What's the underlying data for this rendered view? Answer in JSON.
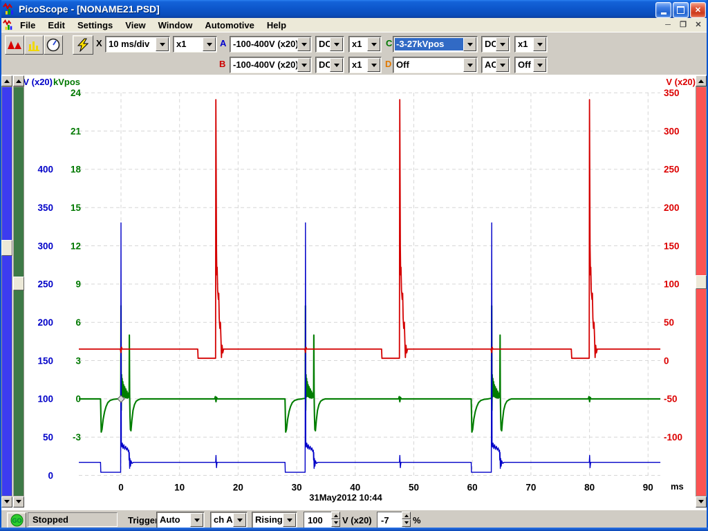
{
  "window": {
    "title": "PicoScope - [NONAME21.PSD]"
  },
  "menu": {
    "items": [
      "File",
      "Edit",
      "Settings",
      "View",
      "Window",
      "Automotive",
      "Help"
    ]
  },
  "toolbar": {
    "x_label": "X",
    "timebase": "10 ms/div",
    "x_multiplier": "x1",
    "channels": [
      {
        "label": "A",
        "color": "#0000cc",
        "range": "-100-400V (x20)",
        "coupling": "DC",
        "probe": "x1"
      },
      {
        "label": "B",
        "color": "#cc0000",
        "range": "-100-400V (x20)",
        "coupling": "DC",
        "probe": "x1"
      },
      {
        "label": "C",
        "color": "#007700",
        "range": "-3-27kVpos",
        "coupling": "DC",
        "probe": "x1"
      },
      {
        "label": "D",
        "color": "#e07800",
        "range": "Off",
        "coupling": "AC",
        "probe": "Off"
      }
    ]
  },
  "statusbar": {
    "go_label": "GO",
    "status": "Stopped",
    "trigger_label": "Trigger",
    "trigger_mode": "Auto",
    "trigger_source": "ch A",
    "trigger_edge": "Rising",
    "threshold_value": "100",
    "threshold_unit": "V (x20)",
    "delay_value": "-7",
    "delay_unit": "%"
  },
  "chart_data": {
    "type": "line",
    "x_axis": {
      "unit": "ms",
      "ticks": [
        "0",
        "10",
        "20",
        "30",
        "40",
        "50",
        "60",
        "70",
        "80",
        "90"
      ],
      "ms_per_div": 10,
      "range_ms": [
        -7.2,
        92.1
      ]
    },
    "y_axes": [
      {
        "id": "blue",
        "title": "V (x20)",
        "color": "#0000c8",
        "units_per_div": 50,
        "ticks": [
          "400",
          "350",
          "300",
          "250",
          "200",
          "150",
          "100",
          "50",
          "0"
        ],
        "first_row": 2,
        "side": "left"
      },
      {
        "id": "green",
        "title": "kVpos",
        "color": "#007800",
        "units_per_div": 3,
        "ticks": [
          "24",
          "21",
          "18",
          "15",
          "12",
          "9",
          "6",
          "3",
          "0",
          "-3"
        ],
        "first_row": 0,
        "side": "left"
      },
      {
        "id": "red",
        "title": "V (x20)",
        "color": "#dc0000",
        "units_per_div": 50,
        "ticks": [
          "350",
          "300",
          "250",
          "200",
          "150",
          "100",
          "50",
          "0",
          "-50",
          "-100"
        ],
        "first_row": 0,
        "side": "right"
      }
    ],
    "timestamp": "31May2012  10:44",
    "trigger_marker": {
      "t": 0,
      "v": 0,
      "axis": "green"
    },
    "templates": {
      "kv_event": [
        [
          -3.5,
          0
        ],
        [
          -3.46,
          -0.7
        ],
        [
          -3.38,
          -2.6
        ],
        [
          -3.25,
          -2.4
        ],
        [
          -3.05,
          -1.6
        ],
        [
          -2.8,
          -1.0
        ],
        [
          -2.55,
          -0.6
        ],
        [
          -2.25,
          -0.3
        ],
        [
          -1.85,
          -0.12
        ],
        [
          -1.3,
          -0.04
        ],
        [
          -0.6,
          0
        ],
        [
          -0.04,
          0.05
        ],
        [
          0,
          7.3
        ],
        [
          0.04,
          -0.9
        ],
        [
          0.09,
          1.9
        ],
        [
          0.14,
          0.15
        ],
        [
          0.19,
          1.6
        ],
        [
          0.25,
          0.35
        ],
        [
          0.31,
          1.35
        ],
        [
          0.38,
          0.2
        ],
        [
          0.45,
          1.1
        ],
        [
          0.53,
          0.15
        ],
        [
          0.62,
          0.95
        ],
        [
          0.72,
          0.1
        ],
        [
          0.82,
          0.78
        ],
        [
          0.92,
          0.08
        ],
        [
          1.02,
          0.6
        ],
        [
          1.12,
          0.06
        ],
        [
          1.22,
          0.45
        ],
        [
          1.32,
          0.12
        ],
        [
          1.39,
          0.3
        ],
        [
          1.43,
          5.0
        ],
        [
          1.47,
          0.4
        ],
        [
          1.53,
          -1.3
        ],
        [
          1.6,
          -2.4
        ],
        [
          1.7,
          -2.5
        ],
        [
          1.85,
          -1.7
        ],
        [
          2.05,
          -0.9
        ],
        [
          2.3,
          -0.45
        ],
        [
          2.6,
          -0.18
        ],
        [
          3.0,
          -0.06
        ],
        [
          3.4,
          0
        ]
      ],
      "kv_blip": [
        [
          -0.2,
          0
        ],
        [
          -0.08,
          0.18
        ],
        [
          0.02,
          -0.22
        ],
        [
          0.12,
          0.12
        ],
        [
          0.25,
          0
        ]
      ],
      "lv_event": [
        [
          -3.5,
          17
        ],
        [
          -3.45,
          4
        ],
        [
          -2.0,
          4
        ],
        [
          -0.06,
          4
        ],
        [
          0,
          330
        ],
        [
          0.06,
          44
        ],
        [
          0.14,
          37
        ],
        [
          0.24,
          42
        ],
        [
          0.36,
          35
        ],
        [
          0.5,
          40
        ],
        [
          0.64,
          34
        ],
        [
          0.8,
          38
        ],
        [
          0.96,
          33
        ],
        [
          1.1,
          36
        ],
        [
          1.24,
          31
        ],
        [
          1.34,
          33
        ],
        [
          1.38,
          20
        ],
        [
          1.42,
          30
        ],
        [
          1.47,
          9
        ],
        [
          1.54,
          22
        ],
        [
          1.62,
          12
        ],
        [
          1.72,
          19
        ],
        [
          1.88,
          15.5
        ],
        [
          2.1,
          17
        ]
      ],
      "lv_blip": [
        [
          -0.15,
          17
        ],
        [
          -0.04,
          17
        ],
        [
          0.02,
          26
        ],
        [
          0.1,
          10
        ],
        [
          0.2,
          17
        ]
      ],
      "hv_event": [
        [
          -3.1,
          15
        ],
        [
          -3.04,
          3
        ],
        [
          -0.05,
          3
        ],
        [
          0,
          341
        ],
        [
          0.1,
          150
        ],
        [
          0.16,
          112
        ],
        [
          0.22,
          122
        ],
        [
          0.3,
          92
        ],
        [
          0.42,
          80
        ],
        [
          0.5,
          88
        ],
        [
          0.58,
          55
        ],
        [
          0.68,
          42
        ],
        [
          0.78,
          50
        ],
        [
          0.88,
          25
        ],
        [
          0.96,
          4
        ],
        [
          1.06,
          20
        ],
        [
          1.18,
          10
        ],
        [
          1.32,
          15
        ]
      ],
      "hv_blip": [
        [
          -0.12,
          15
        ],
        [
          0,
          10.5
        ],
        [
          0.08,
          17.5
        ],
        [
          0.2,
          15
        ]
      ]
    },
    "series": [
      {
        "name": "channel-c-kv",
        "axis": "green",
        "color": "#007d00",
        "width": 2.1,
        "base": 0,
        "events": [
          {
            "t0": 0,
            "shape": "kv_event"
          },
          {
            "t0": 16.2,
            "shape": "kv_blip"
          },
          {
            "t0": 31.5,
            "shape": "kv_event"
          },
          {
            "t0": 47.6,
            "shape": "kv_blip"
          },
          {
            "t0": 63.3,
            "shape": "kv_event"
          },
          {
            "t0": 80,
            "shape": "kv_blip"
          }
        ]
      },
      {
        "name": "channel-a-v",
        "axis": "blue",
        "color": "#0000c8",
        "width": 1.4,
        "base": 17,
        "events": [
          {
            "t0": 0,
            "shape": "lv_event"
          },
          {
            "t0": 16.2,
            "shape": "lv_blip"
          },
          {
            "t0": 31.5,
            "shape": "lv_event"
          },
          {
            "t0": 47.6,
            "shape": "lv_blip"
          },
          {
            "t0": 63.3,
            "shape": "lv_event"
          },
          {
            "t0": 80,
            "shape": "lv_blip"
          }
        ]
      },
      {
        "name": "channel-b-v",
        "axis": "red",
        "color": "#d40000",
        "width": 1.8,
        "base": 15,
        "events": [
          {
            "t0": 0,
            "shape": "hv_blip"
          },
          {
            "t0": 16.2,
            "shape": "hv_event"
          },
          {
            "t0": 31.5,
            "shape": "hv_blip"
          },
          {
            "t0": 47.6,
            "shape": "hv_event"
          },
          {
            "t0": 63.3,
            "shape": "hv_blip"
          },
          {
            "t0": 80,
            "shape": "hv_event"
          }
        ]
      }
    ]
  }
}
